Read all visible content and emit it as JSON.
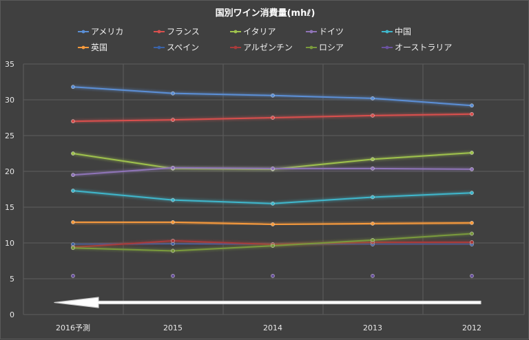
{
  "chart_data": {
    "type": "line",
    "title": "国別ワイン消費量(mhℓ)",
    "categories": [
      "2016予測",
      "2015",
      "2014",
      "2013",
      "2012"
    ],
    "ylim": [
      0,
      35
    ],
    "yticks": [
      0,
      5,
      10,
      15,
      20,
      25,
      30,
      35
    ],
    "grid": true,
    "legend_position": "top",
    "series": [
      {
        "name": "アメリカ",
        "color": "#5b8fd6",
        "values": [
          31.8,
          30.9,
          30.6,
          30.2,
          29.2
        ]
      },
      {
        "name": "フランス",
        "color": "#d9504e",
        "values": [
          27.0,
          27.2,
          27.5,
          27.8,
          28.0
        ]
      },
      {
        "name": "イタリア",
        "color": "#9fc24d",
        "values": [
          22.5,
          20.4,
          20.3,
          21.7,
          22.6
        ]
      },
      {
        "name": "ドイツ",
        "color": "#8f74b8",
        "values": [
          19.5,
          20.5,
          20.4,
          20.4,
          20.3
        ]
      },
      {
        "name": "中国",
        "color": "#3fb7cc",
        "values": [
          17.3,
          16.0,
          15.5,
          16.4,
          17.0
        ]
      },
      {
        "name": "英国",
        "color": "#f79a3c",
        "values": [
          12.9,
          12.9,
          12.6,
          12.7,
          12.8
        ]
      },
      {
        "name": "スペイン",
        "color": "#3a63a8",
        "values": [
          9.8,
          9.9,
          9.8,
          9.8,
          9.8
        ]
      },
      {
        "name": "アルゼンチン",
        "color": "#a93b3b",
        "values": [
          9.4,
          10.3,
          9.8,
          10.1,
          10.1
        ]
      },
      {
        "name": "ロシア",
        "color": "#7a9a3c",
        "values": [
          9.3,
          8.9,
          9.6,
          10.4,
          11.3
        ]
      },
      {
        "name": "オーストラリア",
        "color": "#6b52a0",
        "values": [
          5.4,
          5.4,
          5.4,
          5.4,
          5.4
        ]
      }
    ],
    "annotation": {
      "type": "arrow",
      "direction": "left",
      "color": "#ffffff"
    }
  }
}
